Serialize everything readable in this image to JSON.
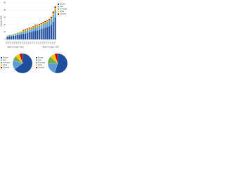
{
  "chart_data": [
    {
      "type": "stacked_bar",
      "y_label": "Capacity (GW)",
      "categories": [
        "1990",
        "1991",
        "1992",
        "1993",
        "1994",
        "1995",
        "1996",
        "1997",
        "1998",
        "1999",
        "2000",
        "2001",
        "2002",
        "2003",
        "2004",
        "2005",
        "2006",
        "2007",
        "2008",
        "2009",
        "2010",
        "2011",
        "2012",
        "2013",
        "2014"
      ],
      "series": [
        {
          "name": "Europe",
          "color": "#1f4e9c",
          "values": [
            3,
            4,
            4,
            5,
            5,
            6,
            6,
            7,
            8,
            8,
            9,
            10,
            10,
            11,
            12,
            12,
            13,
            14,
            15,
            16,
            17,
            18,
            20,
            24,
            30
          ]
        },
        {
          "name": "Asia",
          "color": "#5b9bd5",
          "values": [
            1,
            1,
            1,
            1,
            2,
            2,
            2,
            2,
            2,
            3,
            3,
            3,
            3,
            3,
            4,
            4,
            4,
            4,
            5,
            5,
            5,
            6,
            6,
            7,
            8
          ]
        },
        {
          "name": "Americas",
          "color": "#70ad47",
          "values": [
            1,
            1,
            1,
            1,
            1,
            1,
            1,
            1,
            1,
            1,
            1,
            1,
            1,
            2,
            2,
            2,
            2,
            2,
            2,
            2,
            2,
            2,
            2,
            3,
            3
          ]
        },
        {
          "name": "Africa",
          "color": "#ffc000",
          "values": [
            0,
            0,
            0,
            0,
            0,
            0,
            1,
            1,
            1,
            1,
            1,
            1,
            1,
            1,
            1,
            1,
            1,
            1,
            1,
            1,
            1,
            1,
            1,
            2,
            2
          ]
        },
        {
          "name": "Oceania",
          "color": "#c00000",
          "values": [
            0,
            0,
            0,
            0,
            0,
            0,
            0,
            0,
            1,
            1,
            1,
            1,
            1,
            1,
            1,
            1,
            1,
            1,
            1,
            1,
            1,
            1,
            2,
            2,
            2
          ]
        }
      ],
      "ylim": [
        0,
        50
      ],
      "yticks": [
        0,
        10,
        20,
        30,
        40,
        50
      ],
      "grid": true
    },
    {
      "type": "pie",
      "title": "Share by region, 2013",
      "categories": [
        "Europe",
        "Asia",
        "Americas",
        "Africa",
        "Oceania"
      ],
      "colors": [
        "#1f4e9c",
        "#5b9bd5",
        "#70ad47",
        "#ffc000",
        "#c00000"
      ],
      "values": [
        65,
        15,
        8,
        7,
        5
      ]
    },
    {
      "type": "pie",
      "title": "Share by region, 2014",
      "categories": [
        "Europe",
        "Asia",
        "Americas",
        "Africa",
        "Oceania"
      ],
      "colors": [
        "#1f4e9c",
        "#5b9bd5",
        "#70ad47",
        "#ffc000",
        "#c00000"
      ],
      "values": [
        55,
        20,
        12,
        8,
        5
      ]
    }
  ]
}
